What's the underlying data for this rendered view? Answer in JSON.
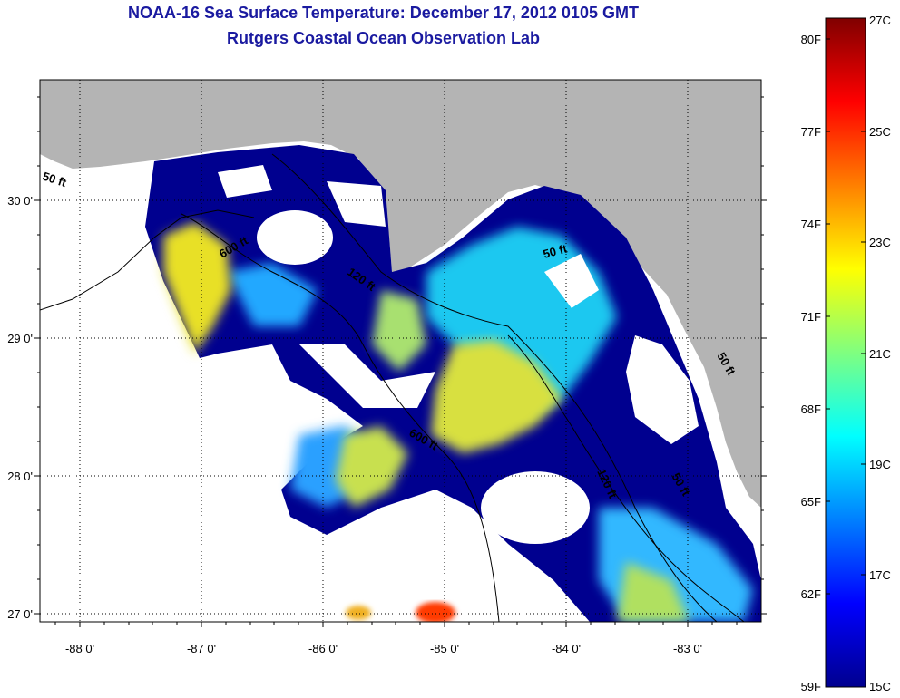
{
  "header": {
    "title": "NOAA-16 Sea Surface Temperature:  December 17, 2012 0105 GMT",
    "subtitle": "Rutgers Coastal Ocean Observation Lab"
  },
  "map": {
    "longitude_ticks": [
      "-88 0'",
      "-87 0'",
      "-86 0'",
      "-85 0'",
      "-84 0'",
      "-83 0'"
    ],
    "latitude_ticks": [
      "30 0'",
      "29 0'",
      "28 0'",
      "27 0'"
    ],
    "contour_labels": [
      "50 ft",
      "600 ft",
      "120 ft",
      "50 ft",
      "600 ft",
      "120 ft",
      "50 ft",
      "50 ft"
    ],
    "colors": {
      "land": "#b4b4b4",
      "cloud": "#ffffff",
      "cold": "#00008f",
      "warm": "#ff2a00"
    }
  },
  "colorbar": {
    "fahrenheit_labels": [
      "80F",
      "77F",
      "74F",
      "71F",
      "68F",
      "65F",
      "62F",
      "59F"
    ],
    "celsius_labels": [
      "27C",
      "25C",
      "23C",
      "21C",
      "19C",
      "17C",
      "15C"
    ]
  }
}
